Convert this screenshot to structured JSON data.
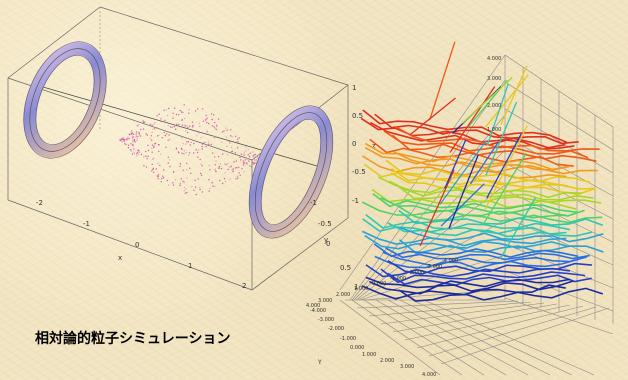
{
  "title": "相対論的粒子シミュレーション",
  "left_plot": {
    "x_axis_label": "x",
    "y_axis_label": "y",
    "z_axis_label": "z",
    "x_ticks": [
      "-2",
      "-1",
      "0",
      "1",
      "2"
    ],
    "y_ticks": [
      "-1",
      "-0.5",
      "0",
      "0.5",
      "1"
    ],
    "z_ticks": [
      "1",
      "0.5",
      "0",
      "-0.5",
      "-1"
    ],
    "ring_color": "#a8a8e0",
    "particle_color": "#d060a0"
  },
  "right_plot": {
    "z_ticks": [
      "4.000",
      "3.000",
      "2.000",
      "1.000"
    ],
    "x_ticks": [
      "4.000",
      "3.000",
      "2.000",
      "1.000",
      "0.000",
      "-1.000",
      "-2.000",
      "-3.000",
      "-4.000"
    ],
    "y_ticks": [
      "-4.000",
      "-3.000",
      "-2.000",
      "-1.000",
      "0.000",
      "1.000",
      "2.000",
      "3.000",
      "4.000"
    ],
    "y_axis_label": "Y"
  }
}
